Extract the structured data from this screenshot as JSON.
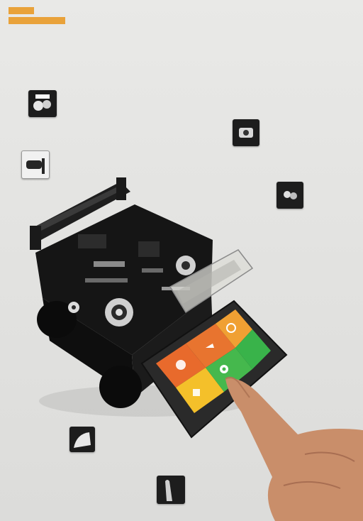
{
  "header": {
    "tag_top": "",
    "tag_bottom": ""
  },
  "captions": [
    "",
    "",
    "",
    "",
    "",
    "",
    ""
  ],
  "icons": [
    "cleaver-photo",
    "heater-photo",
    "fiber-holder-photo",
    "electrode-photo",
    "battery-photo",
    "touch-photo"
  ],
  "watermark": "",
  "colors": {
    "accent": "#e9a23a",
    "tile_orange": "#e86a2c",
    "tile_amber": "#f0a033",
    "tile_green": "#39b34a",
    "tile_yellow": "#f4c02a"
  }
}
